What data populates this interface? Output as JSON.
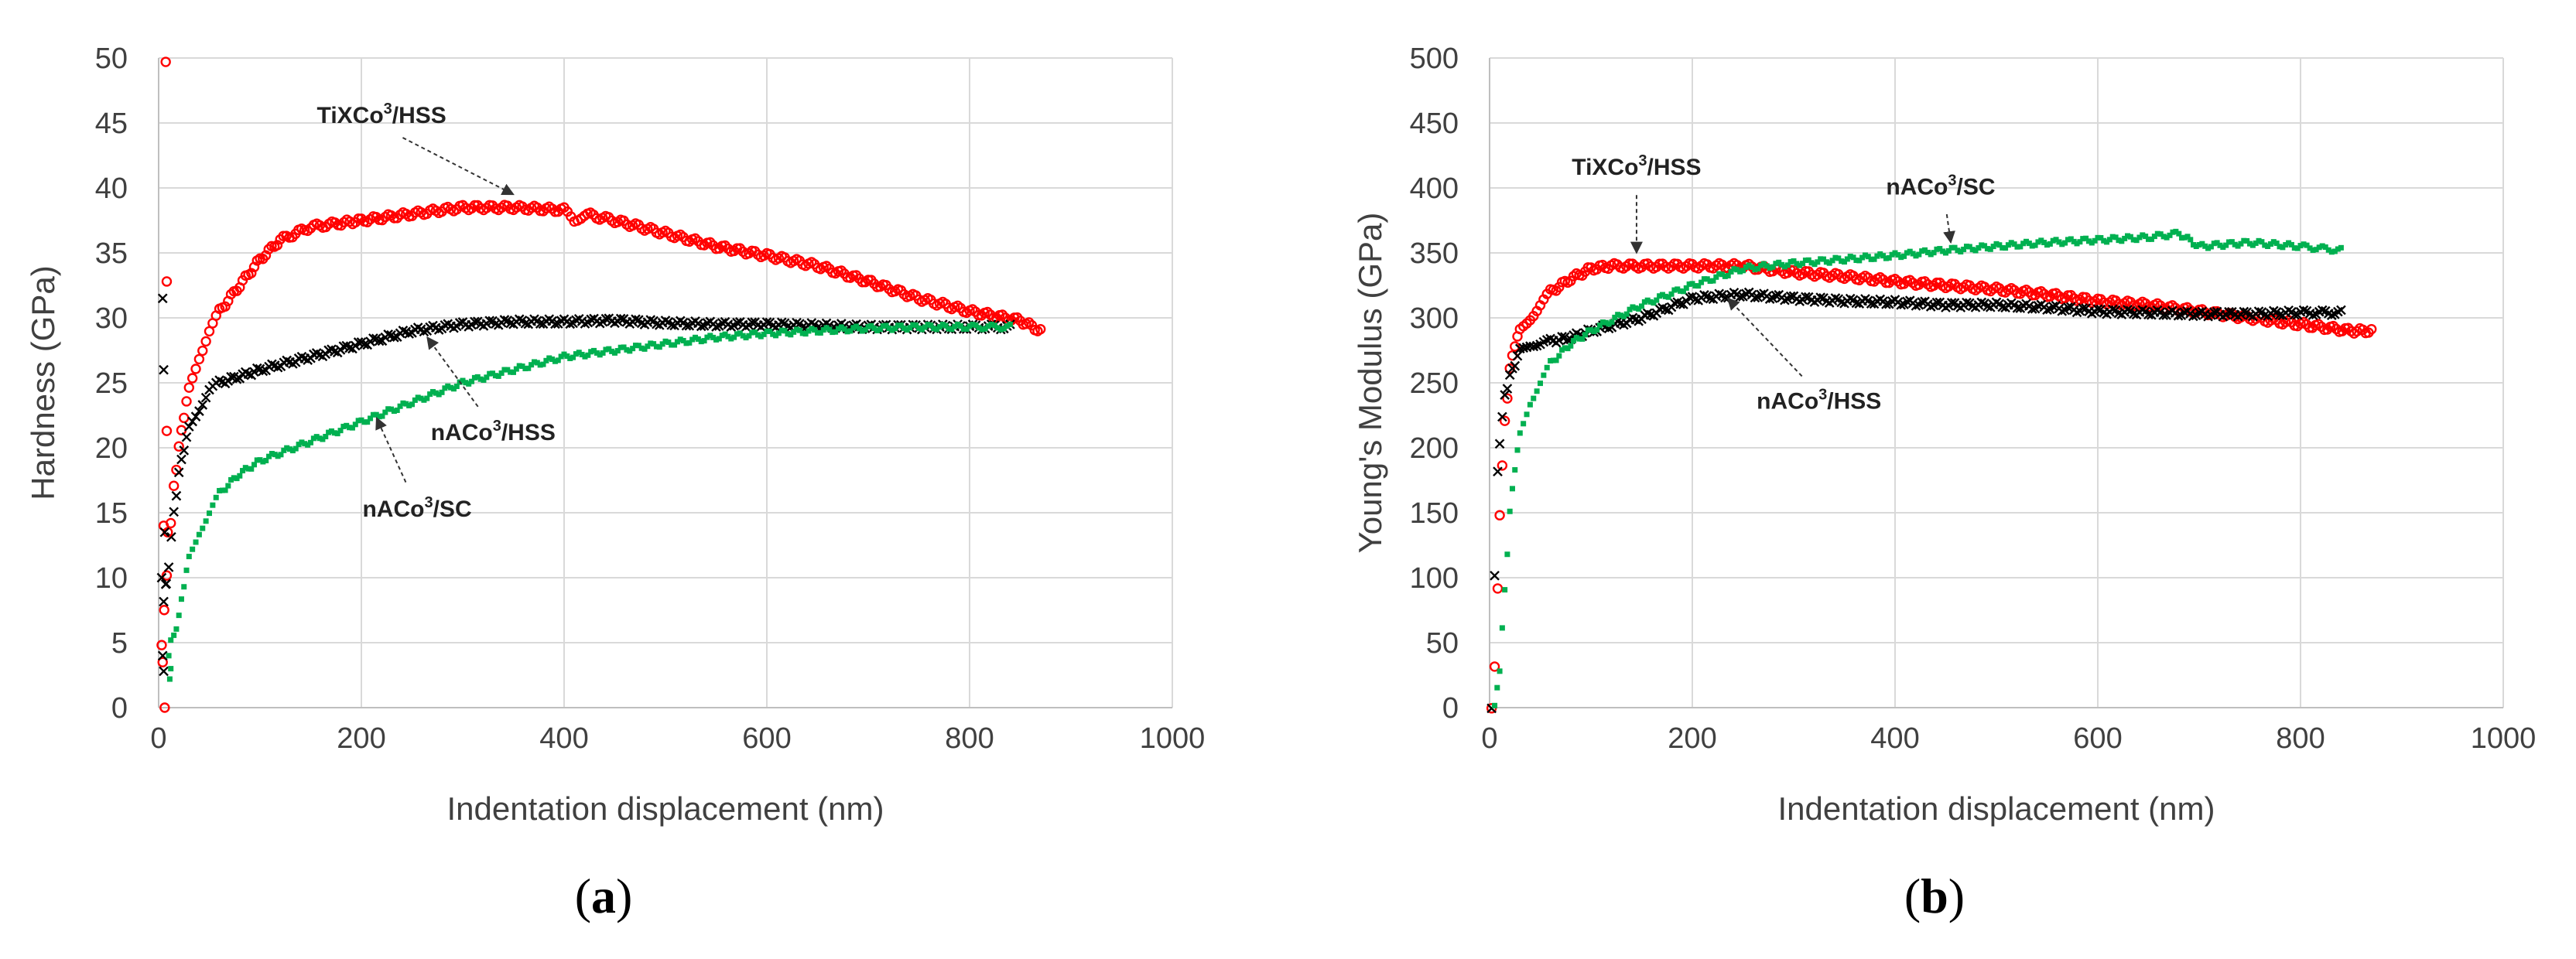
{
  "chart_data": [
    {
      "type": "scatter",
      "panel_label": "(a)",
      "panel_letter": "a",
      "xlabel": "Indentation displacement (nm)",
      "ylabel": "Hardness (GPa)",
      "xlim": [
        0,
        1000
      ],
      "ylim": [
        0,
        50
      ],
      "xticks": [
        0,
        200,
        400,
        600,
        800,
        1000
      ],
      "yticks": [
        0,
        5,
        10,
        15,
        20,
        25,
        30,
        35,
        40,
        45,
        50
      ],
      "grid": true,
      "annotations": [
        {
          "base": "TiXCo",
          "sup": "3",
          "rest": "/HSS",
          "series": "TiXCo3/HSS",
          "text_xy": [
            220,
            45.0
          ],
          "point_xy": [
            350,
            39.5
          ]
        },
        {
          "base": "nACo",
          "sup": "3",
          "rest": "/HSS",
          "series": "nACo3/HSS",
          "text_xy": [
            330,
            20.6
          ],
          "point_xy": [
            265,
            28.5
          ]
        },
        {
          "base": "nACo",
          "sup": "3",
          "rest": "/SC",
          "series": "nACo3/SC",
          "text_xy": [
            255,
            14.7
          ],
          "point_xy": [
            215,
            22.3
          ]
        }
      ],
      "series": [
        {
          "name": "TiXCo3/HSS",
          "color": "#ff0000",
          "marker": "circle",
          "x": [
            3,
            8,
            12,
            15,
            20,
            25,
            30,
            40,
            50,
            60,
            80,
            100,
            120,
            150,
            180,
            200,
            250,
            300,
            350,
            400,
            410,
            420,
            450,
            500,
            550,
            600,
            650,
            700,
            750,
            800,
            850,
            870
          ],
          "y": [
            5,
            10,
            14,
            17,
            20,
            22.5,
            24.5,
            27,
            29,
            30.5,
            32.5,
            34.5,
            36,
            37,
            37.3,
            37.5,
            38,
            38.5,
            38.5,
            38.3,
            37.5,
            38,
            37.5,
            36.5,
            35.5,
            34.8,
            34,
            32.8,
            31.5,
            30.5,
            29.8,
            29
          ]
        },
        {
          "name": "nACo3/HSS",
          "color": "#000000",
          "marker": "x",
          "x": [
            5,
            10,
            15,
            20,
            25,
            30,
            40,
            50,
            60,
            80,
            100,
            150,
            200,
            250,
            300,
            350,
            400,
            450,
            500,
            550,
            600,
            650,
            700,
            750,
            800,
            840
          ],
          "y": [
            8,
            11,
            15,
            18,
            20,
            21.5,
            23,
            24.5,
            25,
            25.5,
            26,
            27,
            28,
            29,
            29.5,
            29.7,
            29.7,
            29.8,
            29.6,
            29.5,
            29.5,
            29.4,
            29.3,
            29.3,
            29.3,
            29.3
          ]
        },
        {
          "name": "nACo3/SC",
          "color": "#00b050",
          "marker": "square",
          "x": [
            12,
            15,
            20,
            25,
            30,
            40,
            50,
            60,
            80,
            100,
            150,
            200,
            250,
            300,
            350,
            400,
            450,
            500,
            550,
            600,
            650,
            700,
            750,
            800,
            840
          ],
          "y": [
            5,
            5.5,
            7,
            9.5,
            11.5,
            13.5,
            15,
            16.5,
            18,
            19,
            20.5,
            22,
            23.5,
            25,
            26,
            27,
            27.5,
            28,
            28.5,
            28.8,
            29,
            29.2,
            29.3,
            29.3,
            29.3
          ]
        },
        {
          "name": "TiXCo3/HSS (low-depth scatter)",
          "color": "#ff0000",
          "marker": "circle",
          "x": [
            7,
            8,
            8,
            5,
            9,
            4,
            6
          ],
          "y": [
            49.7,
            32.8,
            21.3,
            14,
            13.5,
            3.5,
            0
          ]
        },
        {
          "name": "nACo3/HSS (low-depth scatter)",
          "color": "#000000",
          "marker": "x",
          "x": [
            4,
            5,
            6,
            3,
            7,
            4,
            5
          ],
          "y": [
            31.5,
            26,
            13.5,
            10,
            9.5,
            4,
            2.8
          ]
        },
        {
          "name": "nACo3/SC (low-depth scatter)",
          "color": "#00b050",
          "marker": "square",
          "x": [
            10,
            12,
            11
          ],
          "y": [
            4,
            3,
            2.2
          ]
        }
      ]
    },
    {
      "type": "scatter",
      "panel_label": "(b)",
      "panel_letter": "b",
      "xlabel": "Indentation displacement (nm)",
      "ylabel": "Young's Modulus (GPa)",
      "xlim": [
        0,
        1000
      ],
      "ylim": [
        0,
        500
      ],
      "xticks": [
        0,
        200,
        400,
        600,
        800,
        1000
      ],
      "yticks": [
        0,
        50,
        100,
        150,
        200,
        250,
        300,
        350,
        400,
        450,
        500
      ],
      "grid": true,
      "annotations": [
        {
          "base": "TiXCo",
          "sup": "3",
          "rest": "/HSS",
          "series": "TiXCo3/HSS",
          "text_xy": [
            145,
            410
          ],
          "point_xy": [
            145,
            350
          ]
        },
        {
          "base": "nACo",
          "sup": "3",
          "rest": "/SC",
          "series": "nACo3/SC",
          "text_xy": [
            445,
            395
          ],
          "point_xy": [
            455,
            358
          ]
        },
        {
          "base": "nACo",
          "sup": "3",
          "rest": "/HSS",
          "series": "nACo3/HSS",
          "text_xy": [
            325,
            230
          ],
          "point_xy": [
            235,
            315
          ]
        }
      ],
      "series": [
        {
          "name": "TiXCo3/HSS",
          "color": "#ff0000",
          "marker": "circle",
          "x": [
            2,
            5,
            8,
            10,
            15,
            20,
            25,
            30,
            40,
            50,
            60,
            80,
            100,
            120,
            150,
            200,
            250,
            300,
            350,
            400,
            450,
            500,
            550,
            600,
            650,
            700,
            750,
            800,
            850,
            870
          ],
          "y": [
            0,
            30,
            90,
            150,
            220,
            260,
            280,
            290,
            300,
            310,
            320,
            330,
            338,
            340,
            340,
            340,
            340,
            335,
            332,
            328,
            325,
            322,
            318,
            313,
            310,
            305,
            300,
            295,
            290,
            290
          ]
        },
        {
          "name": "nACo3/HSS",
          "color": "#000000",
          "marker": "x",
          "x": [
            2,
            5,
            8,
            10,
            15,
            20,
            25,
            30,
            40,
            50,
            60,
            80,
            100,
            150,
            200,
            250,
            300,
            350,
            400,
            450,
            500,
            550,
            600,
            650,
            700,
            750,
            800,
            840
          ],
          "y": [
            0,
            100,
            180,
            205,
            240,
            255,
            265,
            275,
            280,
            280,
            282,
            285,
            290,
            300,
            315,
            318,
            315,
            313,
            312,
            310,
            310,
            308,
            305,
            304,
            303,
            303,
            304,
            304
          ]
        },
        {
          "name": "nACo3/SC",
          "color": "#00b050",
          "marker": "square",
          "x": [
            5,
            10,
            15,
            20,
            25,
            30,
            40,
            50,
            60,
            80,
            100,
            150,
            200,
            250,
            300,
            350,
            400,
            450,
            500,
            550,
            600,
            650,
            680,
            700,
            750,
            800,
            840
          ],
          "y": [
            0,
            30,
            90,
            150,
            185,
            210,
            235,
            250,
            265,
            280,
            290,
            310,
            325,
            338,
            342,
            345,
            348,
            352,
            355,
            358,
            360,
            362,
            365,
            355,
            358,
            355,
            352
          ]
        }
      ]
    }
  ]
}
